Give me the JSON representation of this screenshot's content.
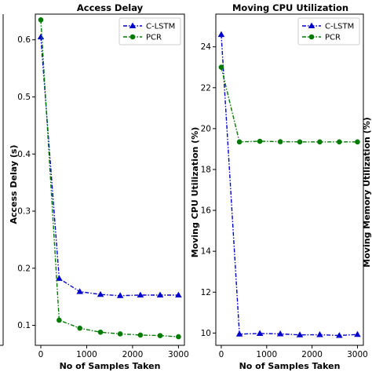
{
  "chart_data": [
    {
      "type": "line",
      "title": "Access Delay",
      "xlabel": "No of Samples Taken",
      "ylabel": "Access Delay (s)",
      "xlim": [
        -120,
        3130
      ],
      "ylim": [
        0.065,
        0.645
      ],
      "xticks": [
        0,
        1000,
        2000,
        3000
      ],
      "xtick_labels": [
        "0",
        "1000",
        "2000",
        "3000"
      ],
      "yticks": [
        0.1,
        0.2,
        0.3,
        0.4,
        0.5,
        0.6
      ],
      "ytick_labels": [
        "0.1",
        "0.2",
        "0.3",
        "0.4",
        "0.5",
        "0.6"
      ],
      "grid": false,
      "legend_position": "top-right",
      "series": [
        {
          "name": "C-LSTM",
          "color": "#0000cc",
          "marker": "triangle",
          "x": [
            0,
            400,
            850,
            1300,
            1730,
            2170,
            2600,
            3000
          ],
          "y": [
            0.605,
            0.182,
            0.159,
            0.154,
            0.152,
            0.153,
            0.153,
            0.153
          ]
        },
        {
          "name": "PCR",
          "color": "#007a00",
          "marker": "circle",
          "x": [
            0,
            400,
            850,
            1300,
            1730,
            2170,
            2600,
            3000
          ],
          "y": [
            0.635,
            0.109,
            0.095,
            0.088,
            0.085,
            0.083,
            0.082,
            0.08
          ]
        }
      ]
    },
    {
      "type": "line",
      "title": "Moving CPU Utilization",
      "xlabel": "No of Samples Taken",
      "ylabel": "Moving CPU Utilization (%)",
      "xlim": [
        -120,
        3130
      ],
      "ylim": [
        9.4,
        25.6
      ],
      "xticks": [
        0,
        1000,
        2000,
        3000
      ],
      "xtick_labels": [
        "0",
        "1000",
        "2000",
        "3000"
      ],
      "yticks": [
        10,
        12,
        14,
        16,
        18,
        20,
        22,
        24
      ],
      "ytick_labels": [
        "10",
        "12",
        "14",
        "16",
        "18",
        "20",
        "22",
        "24"
      ],
      "grid": false,
      "legend_position": "top-right",
      "series": [
        {
          "name": "C-LSTM",
          "color": "#0000cc",
          "marker": "triangle",
          "x": [
            0,
            400,
            850,
            1300,
            1730,
            2170,
            2600,
            3000
          ],
          "y": [
            24.6,
            9.95,
            9.98,
            9.96,
            9.91,
            9.92,
            9.88,
            9.93
          ]
        },
        {
          "name": "PCR",
          "color": "#007a00",
          "marker": "circle",
          "x": [
            0,
            400,
            850,
            1300,
            1730,
            2170,
            2600,
            3000
          ],
          "y": [
            23.0,
            19.35,
            19.38,
            19.36,
            19.35,
            19.35,
            19.35,
            19.35
          ]
        }
      ]
    }
  ],
  "partial_right_ylabel": "Moving Memory Utilization (%)"
}
